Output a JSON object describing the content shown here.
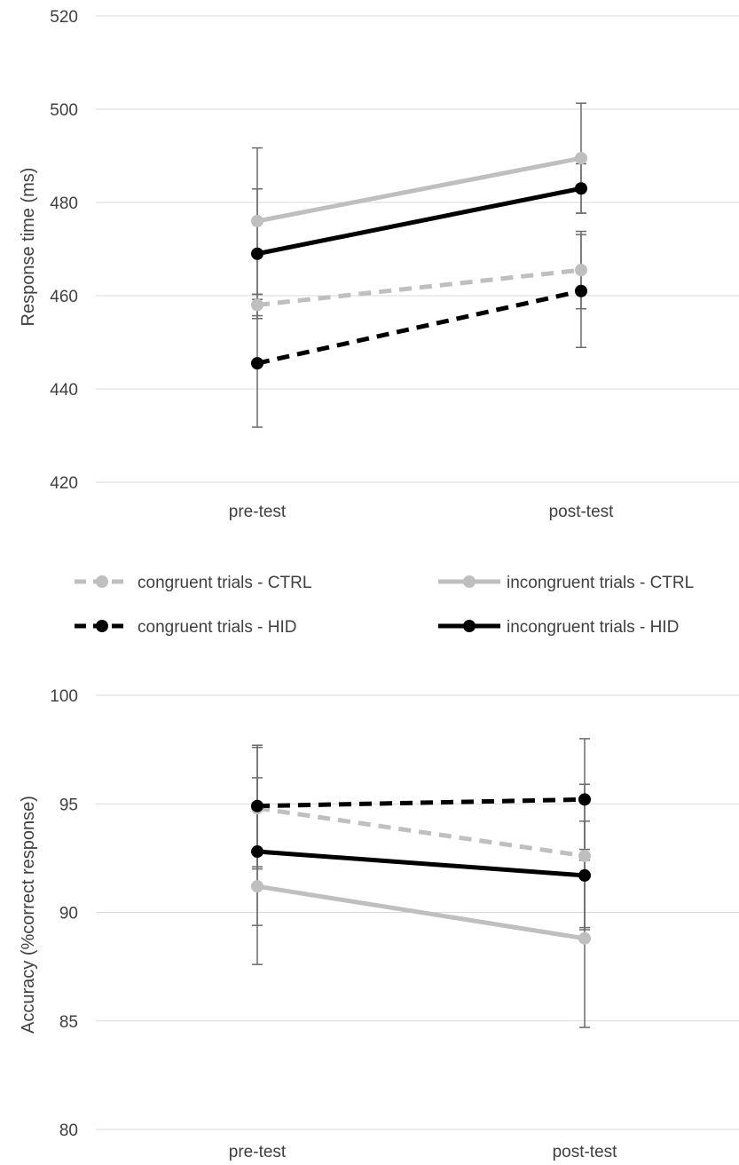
{
  "legend": [
    {
      "name": "congruent trials - CTRL",
      "color": "#bfbfbf",
      "dashed": true
    },
    {
      "name": "incongruent trials - CTRL",
      "color": "#bfbfbf",
      "dashed": false
    },
    {
      "name": "congruent trials - HID",
      "color": "#000000",
      "dashed": true
    },
    {
      "name": "incongruent trials - HID",
      "color": "#000000",
      "dashed": false
    }
  ],
  "chart_data": [
    {
      "type": "line",
      "ylabel": "Response time (ms)",
      "xlabel": "",
      "categories": [
        "pre-test",
        "post-test"
      ],
      "ylim": [
        420,
        520
      ],
      "yticks": [
        420,
        440,
        460,
        480,
        500,
        520
      ],
      "grid": true,
      "legend_position": "bottom",
      "series": [
        {
          "name": "congruent trials - CTRL",
          "values": [
            458,
            465.5
          ],
          "errors": [
            2.3,
            8.3
          ]
        },
        {
          "name": "incongruent trials - CTRL",
          "values": [
            476,
            489.5
          ],
          "errors": [
            15.7,
            11.8
          ]
        },
        {
          "name": "congruent trials - HID",
          "values": [
            445.5,
            461
          ],
          "errors": [
            13.7,
            12.1
          ]
        },
        {
          "name": "incongruent trials - HID",
          "values": [
            469,
            483
          ],
          "errors": [
            13.9,
            5.3
          ]
        }
      ]
    },
    {
      "type": "line",
      "ylabel": "Accuracy (%correct response)",
      "xlabel": "",
      "categories": [
        "pre-test",
        "post-test"
      ],
      "ylim": [
        80,
        100
      ],
      "yticks": [
        80,
        85,
        90,
        95,
        100
      ],
      "grid": true,
      "series": [
        {
          "name": "congruent trials - CTRL",
          "values": [
            94.8,
            92.6
          ],
          "errors": [
            2.8,
            3.3
          ]
        },
        {
          "name": "incongruent trials - CTRL",
          "values": [
            91.2,
            88.8
          ],
          "errors": [
            3.6,
            4.1
          ]
        },
        {
          "name": "congruent trials - HID",
          "values": [
            94.9,
            95.2
          ],
          "errors": [
            2.8,
            2.8
          ]
        },
        {
          "name": "incongruent trials - HID",
          "values": [
            92.8,
            91.7
          ],
          "errors": [
            3.4,
            2.5
          ]
        }
      ]
    }
  ]
}
